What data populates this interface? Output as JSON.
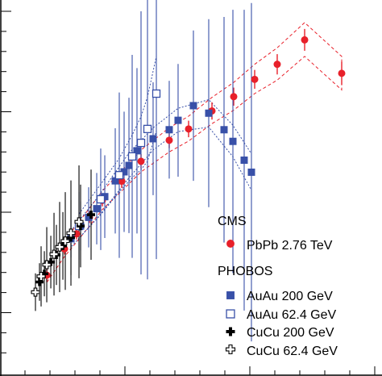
{
  "chart_data": {
    "type": "scatter",
    "title": "",
    "xlabel": "",
    "ylabel": "",
    "xlim": [
      0,
      1
    ],
    "ylim": [
      0,
      1
    ],
    "legend": {
      "placement": "bottom-right",
      "groups": [
        {
          "title": "CMS",
          "entries": [
            {
              "label": "PbPb 2.76 TeV",
              "marker": "filled-circle",
              "color": "#e8202a"
            }
          ]
        },
        {
          "title": "PHOBOS",
          "entries": [
            {
              "label": "AuAu 200 GeV",
              "marker": "filled-square",
              "color": "#3850a8"
            },
            {
              "label": "AuAu 62.4 GeV",
              "marker": "open-square",
              "color": "#3850a8"
            },
            {
              "label": "CuCu 200 GeV",
              "marker": "filled-cross",
              "color": "#000000"
            },
            {
              "label": "CuCu 62.4 GeV",
              "marker": "open-cross",
              "color": "#000000"
            }
          ]
        }
      ]
    },
    "series": [
      {
        "name": "PbPb 2.76 TeV",
        "marker": "filled-circle",
        "color": "#e8202a",
        "points": [
          [
            0.1225,
            0.268,
            0.017
          ],
          [
            0.1689,
            0.338,
            0.015
          ],
          [
            0.2004,
            0.378,
            0.015
          ],
          [
            0.2342,
            0.422,
            0.015
          ],
          [
            0.2679,
            0.467,
            0.016
          ],
          [
            0.3186,
            0.518,
            0.018
          ],
          [
            0.3692,
            0.571,
            0.019
          ],
          [
            0.443,
            0.627,
            0.021
          ],
          [
            0.4937,
            0.657,
            0.022
          ],
          [
            0.5549,
            0.705,
            0.023
          ],
          [
            0.6118,
            0.743,
            0.024
          ],
          [
            0.6667,
            0.789,
            0.025
          ],
          [
            0.7257,
            0.829,
            0.027
          ],
          [
            0.7975,
            0.894,
            0.029
          ],
          [
            0.8945,
            0.805,
            0.031
          ]
        ],
        "band": {
          "color": "#e8202a",
          "x": [
            0.1225,
            0.1689,
            0.2004,
            0.2342,
            0.2679,
            0.3186,
            0.3692,
            0.443,
            0.4937,
            0.5549,
            0.6118,
            0.6667,
            0.7257,
            0.7975,
            0.8945
          ],
          "upper": [
            0.288,
            0.36,
            0.401,
            0.446,
            0.492,
            0.546,
            0.601,
            0.66,
            0.691,
            0.741,
            0.781,
            0.829,
            0.873,
            0.94,
            0.85
          ],
          "lower": [
            0.249,
            0.318,
            0.356,
            0.399,
            0.443,
            0.492,
            0.543,
            0.596,
            0.625,
            0.671,
            0.707,
            0.751,
            0.787,
            0.85,
            0.761
          ]
        }
      },
      {
        "name": "AuAu 200 GeV",
        "marker": "filled-square",
        "color": "#3850a8",
        "points": [
          [
            0.1857,
            0.365,
            0.05
          ],
          [
            0.211,
            0.399,
            0.065
          ],
          [
            0.2321,
            0.422,
            0.08
          ],
          [
            0.2532,
            0.445,
            0.095
          ],
          [
            0.2743,
            0.477,
            0.11
          ],
          [
            0.3017,
            0.519,
            0.14
          ],
          [
            0.3249,
            0.543,
            0.16
          ],
          [
            0.3376,
            0.56,
            0.18
          ],
          [
            0.3586,
            0.599,
            0.22
          ],
          [
            0.4008,
            0.631,
            0.15
          ],
          [
            0.443,
            0.655,
            0.13
          ],
          [
            0.4662,
            0.68,
            0.15
          ],
          [
            0.5063,
            0.719,
            0.2
          ],
          [
            0.5464,
            0.699,
            0.25
          ],
          [
            0.5865,
            0.655,
            0.3
          ],
          [
            0.6097,
            0.624,
            0.35
          ],
          [
            0.6392,
            0.574,
            0.4
          ],
          [
            0.6582,
            0.542,
            0.45
          ]
        ],
        "band": {
          "color": "#3850a8",
          "x": [
            0.1857,
            0.2532,
            0.3376,
            0.4008,
            0.4662,
            0.5464,
            0.6097,
            0.6582
          ],
          "upper": [
            0.386,
            0.472,
            0.593,
            0.66,
            0.712,
            0.735,
            0.667,
            0.591
          ],
          "lower": [
            0.343,
            0.418,
            0.527,
            0.601,
            0.65,
            0.662,
            0.583,
            0.494
          ]
        }
      },
      {
        "name": "AuAu 62.4 GeV",
        "marker": "open-square",
        "color": "#3850a8",
        "points": [
          [
            0.2068,
            0.399,
            0.09
          ],
          [
            0.2637,
            0.47,
            0.135
          ],
          [
            0.3122,
            0.534,
            0.22
          ],
          [
            0.346,
            0.584,
            0.27
          ],
          [
            0.3692,
            0.62,
            0.35
          ],
          [
            0.3861,
            0.657,
            0.4
          ],
          [
            0.4093,
            0.751,
            0.44
          ]
        ],
        "band": {
          "color": "#3850a8",
          "x": [
            0.2068,
            0.2637,
            0.3122,
            0.346,
            0.3692,
            0.3861,
            0.4093
          ],
          "upper": [
            0.431,
            0.51,
            0.579,
            0.641,
            0.69,
            0.742,
            0.85
          ],
          "lower": [
            0.367,
            0.429,
            0.49,
            0.527,
            0.549,
            0.571,
            0.652
          ]
        }
      },
      {
        "name": "CuCu 200 GeV",
        "marker": "filled-cross",
        "color": "#000000",
        "points": [
          [
            0.1034,
            0.25,
            0.05
          ],
          [
            0.1161,
            0.272,
            0.06
          ],
          [
            0.133,
            0.303,
            0.07
          ],
          [
            0.1477,
            0.322,
            0.08
          ],
          [
            0.1646,
            0.346,
            0.09
          ],
          [
            0.1857,
            0.368,
            0.1
          ],
          [
            0.211,
            0.399,
            0.11
          ],
          [
            0.2384,
            0.429,
            0.12
          ]
        ]
      },
      {
        "name": "CuCu 62.4 GeV",
        "marker": "open-cross",
        "color": "#000000",
        "points": [
          [
            0.0928,
            0.223,
            0.05
          ],
          [
            0.1076,
            0.265,
            0.08
          ],
          [
            0.1224,
            0.296,
            0.1
          ],
          [
            0.1414,
            0.324,
            0.11
          ],
          [
            0.1561,
            0.343,
            0.12
          ],
          [
            0.1709,
            0.359,
            0.13
          ],
          [
            0.1857,
            0.38,
            0.14
          ],
          [
            0.2068,
            0.41,
            0.15
          ]
        ]
      }
    ]
  }
}
